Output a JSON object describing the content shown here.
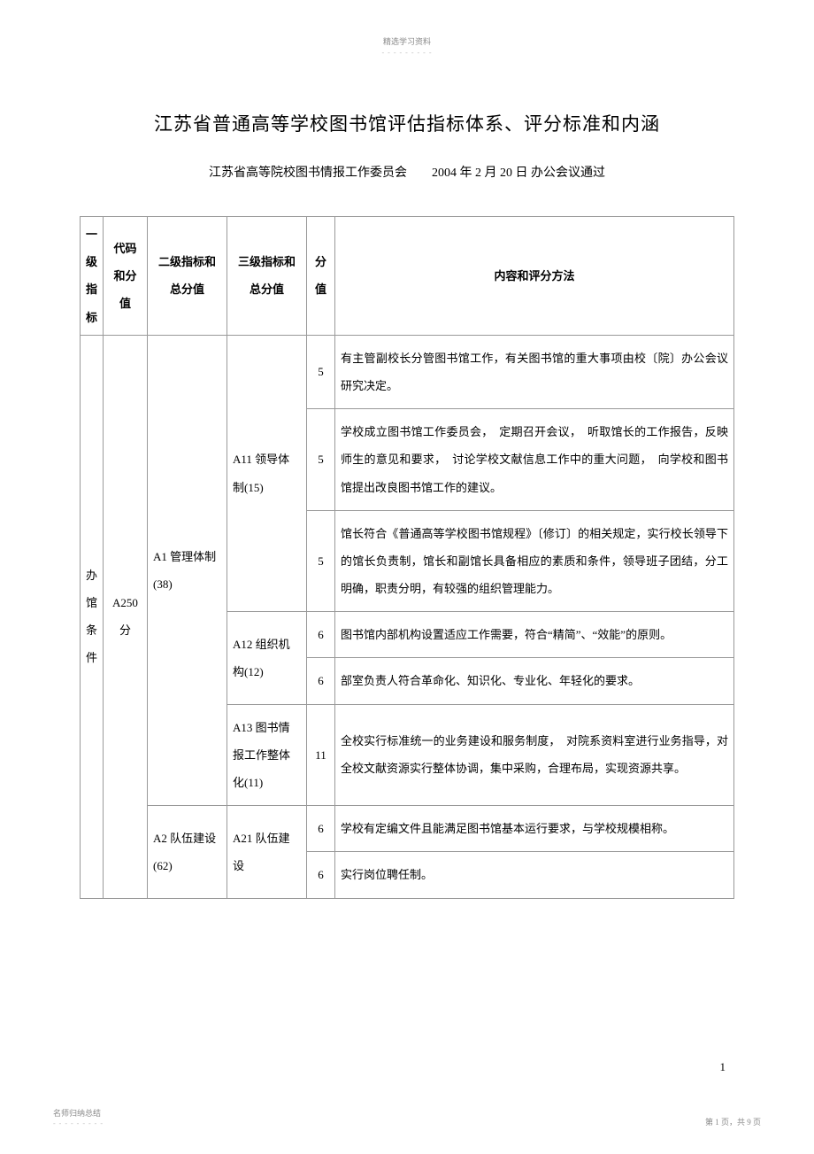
{
  "header_small": "精选学习资料",
  "dashes": "- - - - - - - - -",
  "title": "江苏省普通高等学校图书馆评估指标体系、评分标准和内涵",
  "subtitle_org": "江苏省高等院校图书情报工作委员会",
  "subtitle_date": "2004 年 2 月 20 日  办公会议通过",
  "table": {
    "headers": {
      "l1": "一级指标",
      "code": "代码和分值",
      "l2": "二级指标和总分值",
      "l3": "三级指标和总分值",
      "score": "分值",
      "content": "内容和评分方法"
    },
    "col_widths": {
      "l1": 26,
      "code": 50,
      "l2": 90,
      "l3": 90,
      "score": 32
    },
    "l1_label": "办馆条件",
    "code_label": "A250分",
    "rows": [
      {
        "l2": "A1 管理体制(38)",
        "l2_rowspan": 6,
        "l3": "A11 领导体制(15)",
        "l3_rowspan": 3,
        "score": "5",
        "content": "有主管副校长分管图书馆工作，有关图书馆的重大事项由校〔院〕办公会议研究决定。"
      },
      {
        "score": "5",
        "content": "学校成立图书馆工作委员会，　定期召开会议，　听取馆长的工作报告，反映师生的意见和要求，　讨论学校文献信息工作中的重大问题，　向学校和图书馆提出改良图书馆工作的建议。"
      },
      {
        "score": "5",
        "content": "馆长符合《普通高等学校图书馆规程》〔修订〕的相关规定，实行校长领导下的馆长负责制，馆长和副馆长具备相应的素质和条件，领导班子团结，分工明确，职责分明，有较强的组织管理能力。"
      },
      {
        "l3": "A12 组织机构(12)",
        "l3_rowspan": 2,
        "score": "6",
        "content": "图书馆内部机构设置适应工作需要，符合“精简”、“效能”的原则。"
      },
      {
        "score": "6",
        "content": "部室负责人符合革命化、知识化、专业化、年轻化的要求。"
      },
      {
        "l3": "A13 图书情报工作整体化(11)",
        "l3_rowspan": 1,
        "score": "11",
        "content": "全校实行标准统一的业务建设和服务制度，　对院系资料室进行业务指导，对全校文献资源实行整体协调，集中采购，合理布局，实现资源共享。"
      },
      {
        "l2": "A2 队伍建设(62)",
        "l2_rowspan": 2,
        "l3": "A21 队伍建设",
        "l3_rowspan": 2,
        "score": "6",
        "content": "学校有定编文件且能满足图书馆基本运行要求，与学校规模相称。"
      },
      {
        "score": "6",
        "content": "实行岗位聘任制。"
      }
    ]
  },
  "page_number_inner": "1",
  "footer_left": "名师归纳总结",
  "footer_right": "第 1 页，共 9 页"
}
